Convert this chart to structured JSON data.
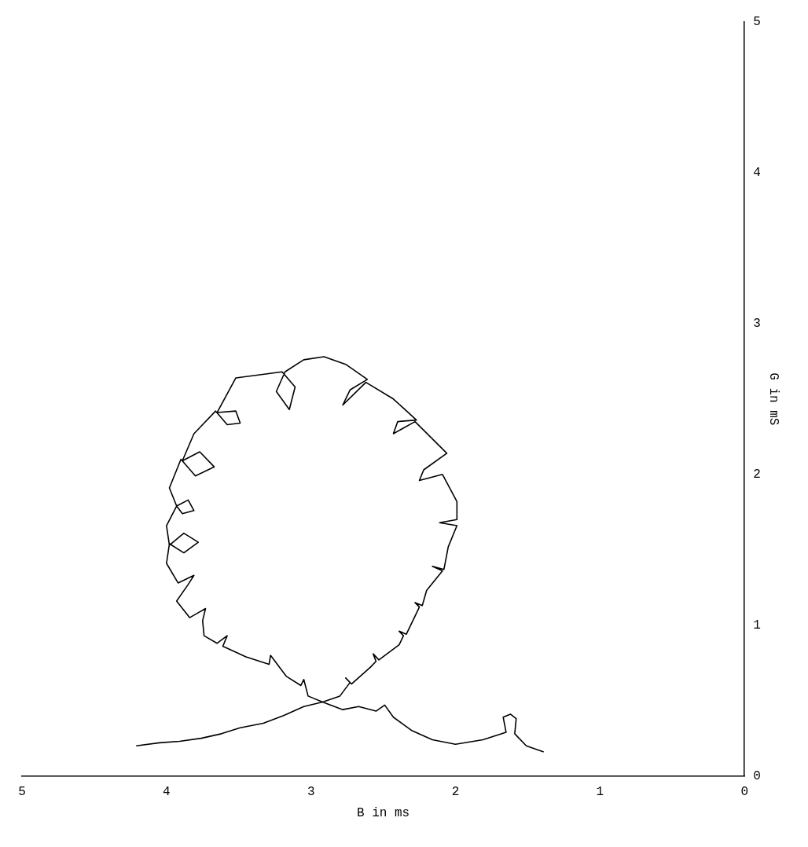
{
  "chart_data": {
    "type": "line",
    "xlabel": "B in ms",
    "ylabel": "G in mS",
    "xlim": [
      5,
      0
    ],
    "ylim": [
      0,
      5
    ],
    "xticks": [
      5,
      4,
      3,
      2,
      1,
      0
    ],
    "yticks": [
      0,
      1,
      2,
      3,
      4,
      5
    ],
    "grid": false,
    "legend": false,
    "marker": "none",
    "line_style": "solid",
    "series": [
      {
        "color": "#000000",
        "x": [
          4.21,
          4.05,
          3.91,
          3.76,
          3.62,
          3.49,
          3.33,
          3.19,
          3.05,
          2.92,
          2.8,
          2.73,
          2.76,
          2.72,
          2.59,
          2.55,
          2.57,
          2.53,
          2.39,
          2.36,
          2.39,
          2.34,
          2.25,
          2.28,
          2.23,
          2.2,
          2.09,
          2.16,
          2.08,
          2.05,
          1.99,
          2.11,
          1.99,
          1.99,
          2.09,
          2.25,
          2.22,
          2.06,
          2.28,
          2.43,
          2.4,
          2.27,
          2.43,
          2.62,
          2.78,
          2.73,
          2.61,
          2.76,
          2.91,
          3.05,
          3.18,
          3.24,
          3.15,
          3.11,
          3.2,
          3.52,
          3.65,
          3.52,
          3.49,
          3.58,
          3.66,
          3.81,
          3.89,
          3.77,
          3.67,
          3.8,
          3.9,
          3.98,
          3.93,
          3.85,
          3.81,
          3.89,
          3.93,
          4.0,
          3.98,
          3.88,
          3.78,
          3.88,
          3.98,
          4.0,
          3.92,
          3.81,
          3.85,
          3.93,
          3.84,
          3.73,
          3.75,
          3.74,
          3.65,
          3.58,
          3.61,
          3.45,
          3.29,
          3.28,
          3.17,
          3.07,
          3.05,
          3.02,
          2.92,
          2.78,
          2.67,
          2.55,
          2.49,
          2.43,
          2.3,
          2.16,
          2.0,
          1.81,
          1.65,
          1.67,
          1.62,
          1.58,
          1.59,
          1.51,
          1.39
        ],
        "values": [
          0.2,
          0.22,
          0.23,
          0.25,
          0.28,
          0.32,
          0.35,
          0.4,
          0.46,
          0.49,
          0.53,
          0.62,
          0.65,
          0.61,
          0.72,
          0.76,
          0.81,
          0.77,
          0.87,
          0.93,
          0.96,
          0.94,
          1.12,
          1.15,
          1.13,
          1.23,
          1.36,
          1.39,
          1.37,
          1.52,
          1.66,
          1.68,
          1.7,
          1.82,
          2.0,
          1.96,
          2.03,
          2.14,
          2.35,
          2.27,
          2.35,
          2.36,
          2.5,
          2.61,
          2.46,
          2.56,
          2.63,
          2.73,
          2.78,
          2.76,
          2.68,
          2.55,
          2.43,
          2.58,
          2.68,
          2.64,
          2.41,
          2.42,
          2.34,
          2.33,
          2.42,
          2.27,
          2.09,
          2.15,
          2.05,
          1.99,
          2.1,
          1.91,
          1.79,
          1.83,
          1.76,
          1.74,
          1.79,
          1.66,
          1.53,
          1.61,
          1.55,
          1.48,
          1.54,
          1.41,
          1.28,
          1.33,
          1.27,
          1.16,
          1.05,
          1.11,
          1.03,
          0.93,
          0.88,
          0.93,
          0.86,
          0.79,
          0.74,
          0.8,
          0.66,
          0.6,
          0.64,
          0.53,
          0.49,
          0.44,
          0.46,
          0.43,
          0.47,
          0.39,
          0.3,
          0.24,
          0.21,
          0.24,
          0.29,
          0.39,
          0.41,
          0.38,
          0.28,
          0.2,
          0.16
        ]
      }
    ]
  }
}
